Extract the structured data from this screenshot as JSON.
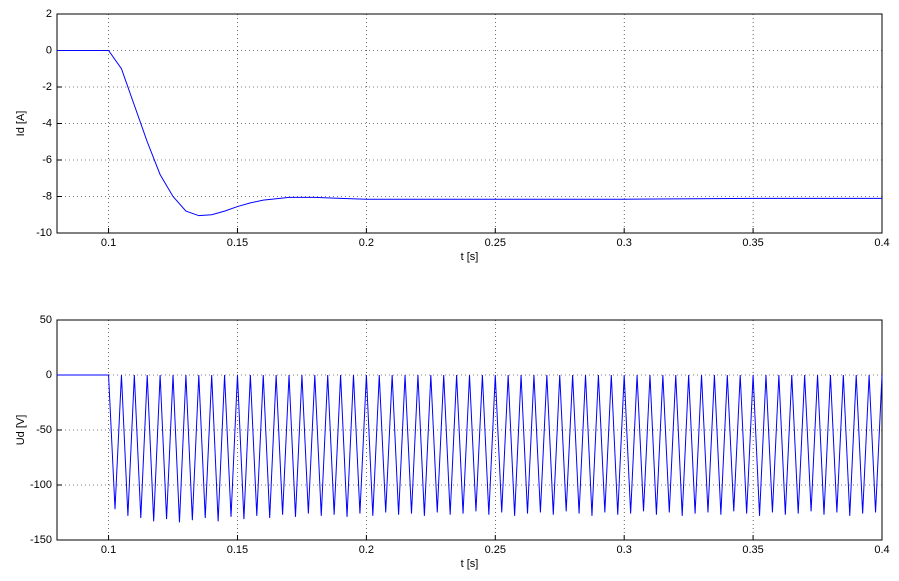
{
  "chart_data": [
    {
      "type": "line",
      "xlabel": "t [s]",
      "ylabel": "Id [A]",
      "color": "#0000ff",
      "grid": true,
      "xlim": [
        0.08,
        0.4
      ],
      "xticks": [
        0.1,
        0.15,
        0.2,
        0.25,
        0.3,
        0.35,
        0.4
      ],
      "ylim": [
        -10,
        2
      ],
      "yticks": [
        -10,
        -8,
        -6,
        -4,
        -2,
        0,
        2
      ],
      "x": [
        0.08,
        0.1,
        0.105,
        0.11,
        0.115,
        0.12,
        0.125,
        0.13,
        0.135,
        0.14,
        0.145,
        0.15,
        0.155,
        0.16,
        0.17,
        0.18,
        0.19,
        0.2,
        0.25,
        0.3,
        0.35,
        0.4
      ],
      "values": [
        0,
        0,
        -1,
        -3,
        -5,
        -6.8,
        -8,
        -8.8,
        -9.05,
        -9,
        -8.8,
        -8.55,
        -8.35,
        -8.2,
        -8.05,
        -8.05,
        -8.1,
        -8.15,
        -8.15,
        -8.15,
        -8.1,
        -8.1
      ]
    },
    {
      "type": "line",
      "xlabel": "t [s]",
      "ylabel": "Ud [V]",
      "color": "#0000ff",
      "grid": true,
      "xlim": [
        0.08,
        0.4
      ],
      "xticks": [
        0.1,
        0.15,
        0.2,
        0.25,
        0.3,
        0.35,
        0.4
      ],
      "ylim": [
        -150,
        50
      ],
      "yticks": [
        -150,
        -100,
        -50,
        0,
        50
      ],
      "x": [
        0.08,
        0.1,
        0.1025,
        0.105,
        0.1075,
        0.11,
        0.1125,
        0.115,
        0.1175,
        0.12,
        0.1225,
        0.125,
        0.1275,
        0.13,
        0.1325,
        0.135,
        0.1375,
        0.14,
        0.1425,
        0.145,
        0.1475,
        0.15,
        0.1525,
        0.155,
        0.1575,
        0.16,
        0.1625,
        0.165,
        0.1675,
        0.17,
        0.1725,
        0.175,
        0.1775,
        0.18,
        0.1825,
        0.185,
        0.1875,
        0.19,
        0.1925,
        0.195,
        0.1975,
        0.2,
        0.2025,
        0.205,
        0.2075,
        0.21,
        0.2125,
        0.215,
        0.2175,
        0.22,
        0.2225,
        0.225,
        0.2275,
        0.23,
        0.2325,
        0.235,
        0.2375,
        0.24,
        0.2425,
        0.245,
        0.2475,
        0.25,
        0.2525,
        0.255,
        0.2575,
        0.26,
        0.2625,
        0.265,
        0.2675,
        0.27,
        0.2725,
        0.275,
        0.2775,
        0.28,
        0.2825,
        0.285,
        0.2875,
        0.29,
        0.2925,
        0.295,
        0.2975,
        0.3,
        0.3025,
        0.305,
        0.3075,
        0.31,
        0.3125,
        0.315,
        0.3175,
        0.32,
        0.3225,
        0.325,
        0.3275,
        0.33,
        0.3325,
        0.335,
        0.3375,
        0.34,
        0.3425,
        0.345,
        0.3475,
        0.35,
        0.3525,
        0.355,
        0.3575,
        0.36,
        0.3625,
        0.365,
        0.3675,
        0.37,
        0.3725,
        0.375,
        0.3775,
        0.38,
        0.3825,
        0.385,
        0.3875,
        0.39,
        0.3925,
        0.395,
        0.3975,
        0.4
      ],
      "values": [
        0,
        0,
        -122,
        0,
        -128,
        0,
        -130,
        0,
        -133,
        0,
        -131,
        0,
        -134,
        0,
        -132,
        0,
        -130,
        0,
        -133,
        0,
        -129,
        0,
        -131,
        0,
        -128,
        0,
        -130,
        0,
        -127,
        0,
        -129,
        0,
        -126,
        0,
        -128,
        0,
        -127,
        0,
        -129,
        0,
        -126,
        0,
        -128,
        0,
        -125,
        0,
        -127,
        0,
        -126,
        0,
        -128,
        0,
        -125,
        0,
        -127,
        0,
        -126,
        0,
        -124,
        0,
        -127,
        0,
        -125,
        0,
        -128,
        0,
        -126,
        0,
        -125,
        0,
        -127,
        0,
        -124,
        0,
        -126,
        0,
        -128,
        0,
        -125,
        0,
        -127,
        0,
        -126,
        0,
        -124,
        0,
        -127,
        0,
        -125,
        0,
        -128,
        0,
        -126,
        0,
        -125,
        0,
        -127,
        0,
        -124,
        0,
        -126,
        0,
        -128,
        0,
        -125,
        0,
        -127,
        0,
        -126,
        0,
        -124,
        0,
        -127,
        0,
        -125,
        0,
        -128,
        0,
        -126,
        0,
        -125,
        0
      ]
    }
  ]
}
